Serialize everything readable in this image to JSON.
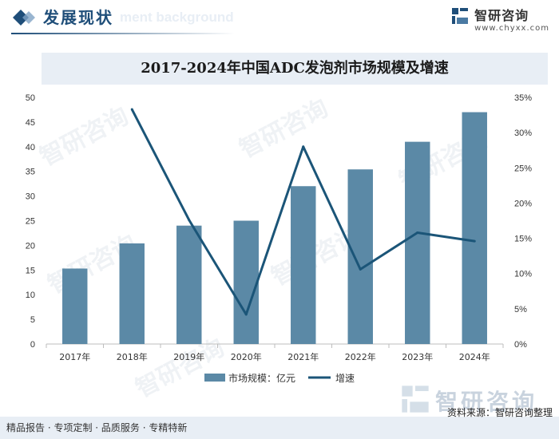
{
  "header": {
    "title": "发展现状",
    "subtitle": "ment background",
    "brand_name": "智研咨询",
    "brand_url": "www.chyxx.com"
  },
  "footer": {
    "services": "精品报告 · 专项定制 · 品质服务 · 专精特新",
    "source": "资料来源：智研咨询整理",
    "logo_text": "智研咨询"
  },
  "watermark": "智研咨询",
  "colors": {
    "bar": "#5b89a6",
    "line": "#1b5578",
    "accent": "#1f4e79",
    "title_bg": "#e8eef5"
  },
  "chart_data": {
    "type": "bar+line",
    "title": "2017-2024年中国ADC发泡剂市场规模及增速",
    "categories": [
      "2017年",
      "2018年",
      "2019年",
      "2020年",
      "2021年",
      "2022年",
      "2023年",
      "2024年"
    ],
    "series": [
      {
        "name": "市场规模：亿元",
        "type": "bar",
        "axis": "left",
        "values": [
          15.3,
          20.4,
          24.0,
          25.0,
          32.0,
          35.4,
          41.0,
          47.0
        ]
      },
      {
        "name": "增速",
        "type": "line",
        "axis": "right",
        "values": [
          null,
          33.3,
          17.6,
          4.2,
          28.0,
          10.6,
          15.8,
          14.6
        ]
      }
    ],
    "y_left": {
      "min": 0,
      "max": 50,
      "ticks": [
        "0",
        "5",
        "10",
        "15",
        "20",
        "25",
        "30",
        "35",
        "40",
        "45",
        "50"
      ]
    },
    "y_right": {
      "min": 0,
      "max": 35,
      "ticks": [
        "0%",
        "5%",
        "10%",
        "15%",
        "20%",
        "25%",
        "30%",
        "35%"
      ]
    },
    "legend_position": "bottom-center",
    "grid": false
  }
}
